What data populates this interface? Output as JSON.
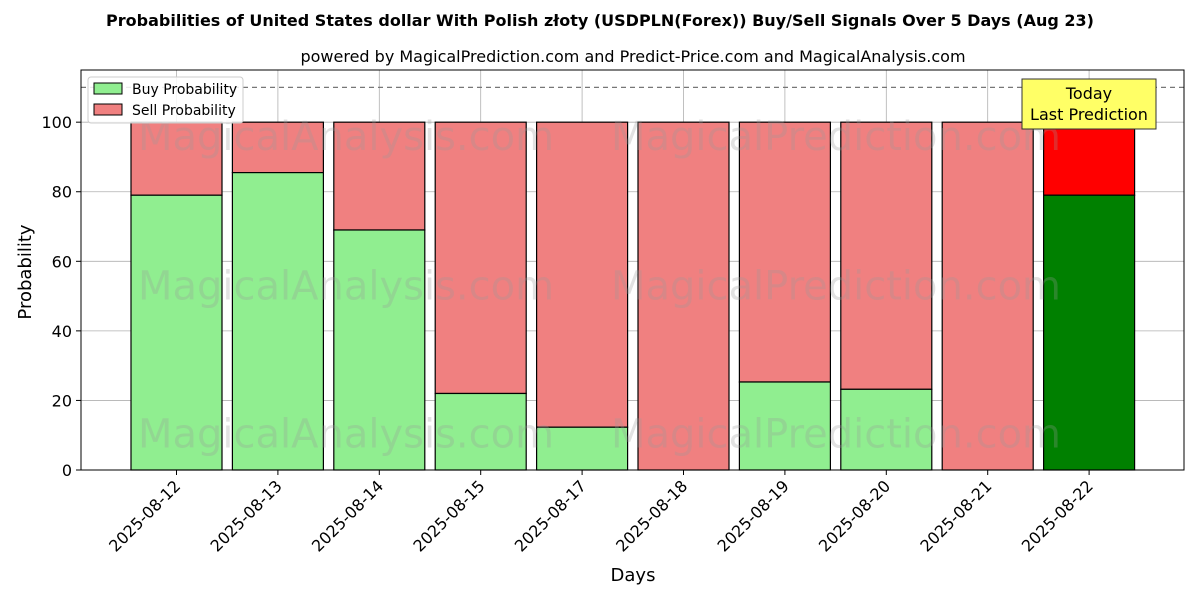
{
  "chart_data": {
    "type": "bar",
    "stacked": true,
    "title": "Probabilities of United States dollar With Polish złoty (USDPLN(Forex)) Buy/Sell Signals Over 5 Days (Aug 23)",
    "subtitle": "powered by MagicalPrediction.com and Predict-Price.com and MagicalAnalysis.com",
    "xlabel": "Days",
    "ylabel": "Probability",
    "ylim": [
      0,
      115
    ],
    "yticks": [
      0,
      20,
      40,
      60,
      80,
      100
    ],
    "grid": true,
    "legend_position": "top-left",
    "reference_line": 110,
    "categories": [
      "2025-08-12",
      "2025-08-13",
      "2025-08-14",
      "2025-08-15",
      "2025-08-17",
      "2025-08-18",
      "2025-08-19",
      "2025-08-20",
      "2025-08-21",
      "2025-08-22"
    ],
    "series": [
      {
        "name": "Buy Probability",
        "color": "#90ee90",
        "values": [
          79,
          85.5,
          69,
          22,
          12.3,
          0,
          25.3,
          23.2,
          0,
          79
        ]
      },
      {
        "name": "Sell Probability",
        "color": "#f08080",
        "values": [
          21,
          14.5,
          31,
          78,
          87.7,
          100,
          74.7,
          76.8,
          100,
          21
        ]
      }
    ],
    "highlight": {
      "index": 9,
      "buy_color": "#008000",
      "sell_color": "#ff0000"
    },
    "annotation": {
      "lines": [
        "Today",
        "Last Prediction"
      ],
      "background": "#ffff66"
    },
    "watermarks": [
      "MagicalAnalysis.com",
      "MagicalPrediction.com"
    ]
  }
}
